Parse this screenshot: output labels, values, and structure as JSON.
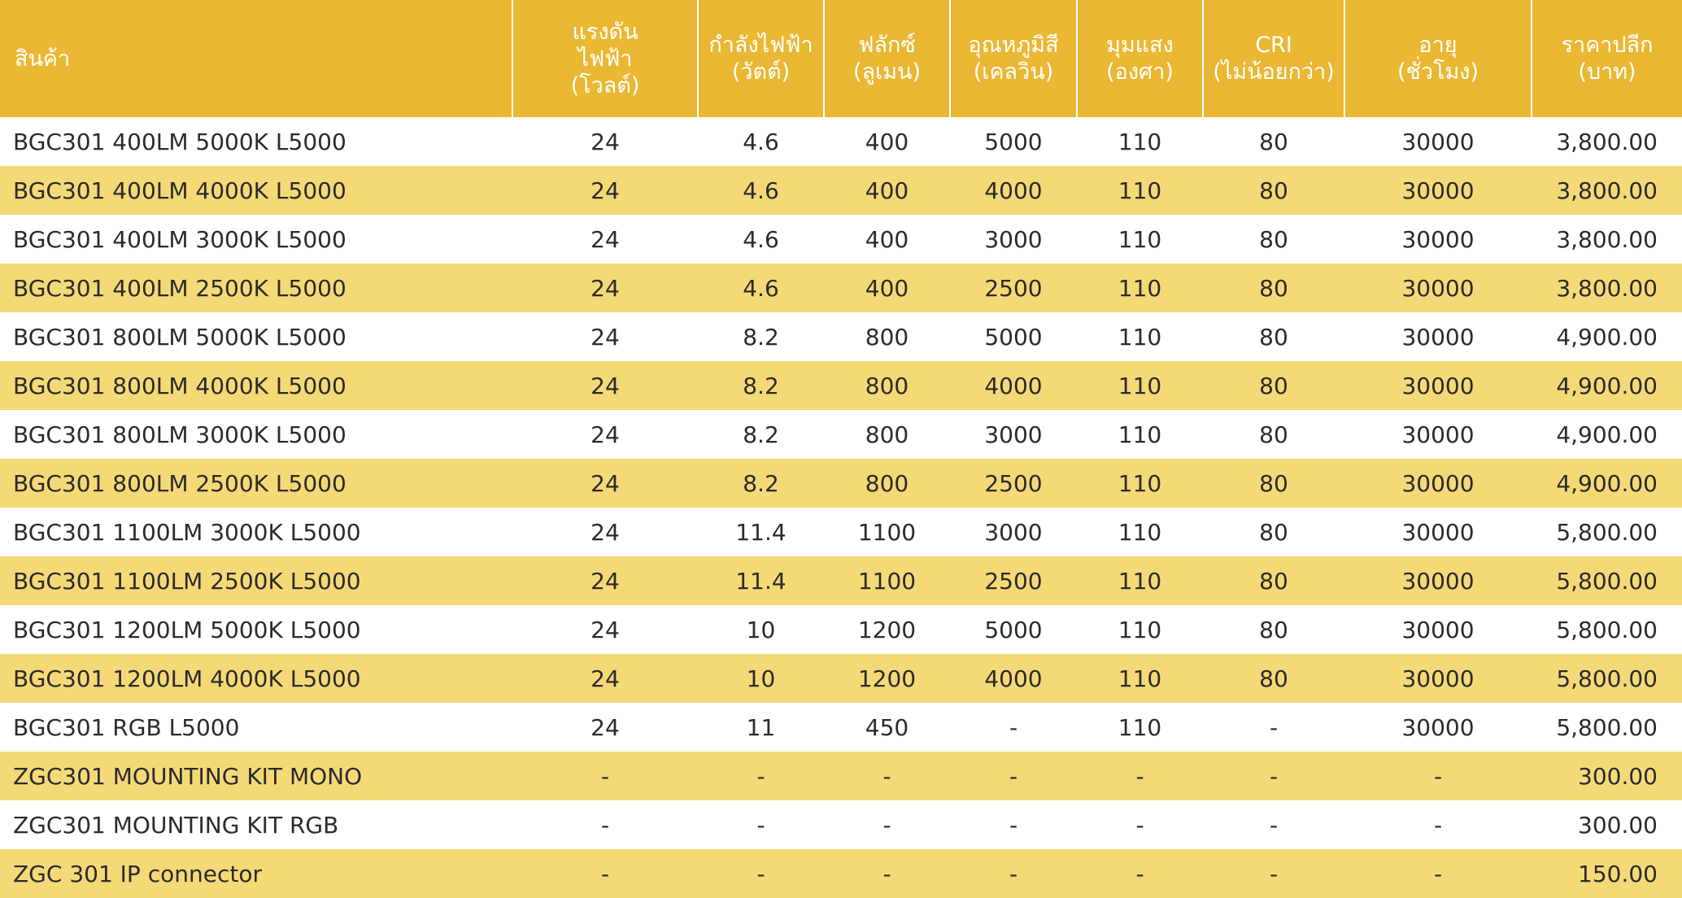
{
  "table": {
    "headers": [
      {
        "lines": [
          "สินค้า"
        ]
      },
      {
        "lines": [
          "แรงดัน",
          "ไฟฟ้า",
          "(โวลต์)"
        ]
      },
      {
        "lines": [
          "กำลังไฟฟ้า",
          "(วัตต์)"
        ]
      },
      {
        "lines": [
          "ฟลักซ์",
          "(ลูเมน)"
        ]
      },
      {
        "lines": [
          "อุณหภูมิสี",
          "(เคลวิน)"
        ]
      },
      {
        "lines": [
          "มุมแสง",
          "(องศา)"
        ]
      },
      {
        "lines": [
          "CRI",
          "(ไม่น้อยกว่า)"
        ]
      },
      {
        "lines": [
          "อายุ",
          "(ชั่วโมง)"
        ]
      },
      {
        "lines": [
          "ราคาปลีก",
          "(บาท)"
        ]
      }
    ],
    "rows": [
      [
        "BGC301 400LM 5000K L5000",
        "24",
        "4.6",
        "400",
        "5000",
        "110",
        "80",
        "30000",
        "3,800.00"
      ],
      [
        "BGC301 400LM 4000K L5000",
        "24",
        "4.6",
        "400",
        "4000",
        "110",
        "80",
        "30000",
        "3,800.00"
      ],
      [
        "BGC301 400LM 3000K L5000",
        "24",
        "4.6",
        "400",
        "3000",
        "110",
        "80",
        "30000",
        "3,800.00"
      ],
      [
        "BGC301 400LM 2500K L5000",
        "24",
        "4.6",
        "400",
        "2500",
        "110",
        "80",
        "30000",
        "3,800.00"
      ],
      [
        "BGC301 800LM 5000K L5000",
        "24",
        "8.2",
        "800",
        "5000",
        "110",
        "80",
        "30000",
        "4,900.00"
      ],
      [
        "BGC301 800LM 4000K L5000",
        "24",
        "8.2",
        "800",
        "4000",
        "110",
        "80",
        "30000",
        "4,900.00"
      ],
      [
        "BGC301 800LM 3000K L5000",
        "24",
        "8.2",
        "800",
        "3000",
        "110",
        "80",
        "30000",
        "4,900.00"
      ],
      [
        "BGC301 800LM 2500K L5000",
        "24",
        "8.2",
        "800",
        "2500",
        "110",
        "80",
        "30000",
        "4,900.00"
      ],
      [
        "BGC301 1100LM 3000K L5000",
        "24",
        "11.4",
        "1100",
        "3000",
        "110",
        "80",
        "30000",
        "5,800.00"
      ],
      [
        "BGC301 1100LM 2500K L5000",
        "24",
        "11.4",
        "1100",
        "2500",
        "110",
        "80",
        "30000",
        "5,800.00"
      ],
      [
        "BGC301 1200LM 5000K L5000",
        "24",
        "10",
        "1200",
        "5000",
        "110",
        "80",
        "30000",
        "5,800.00"
      ],
      [
        "BGC301 1200LM 4000K L5000",
        "24",
        "10",
        "1200",
        "4000",
        "110",
        "80",
        "30000",
        "5,800.00"
      ],
      [
        "BGC301 RGB L5000",
        "24",
        "11",
        "450",
        "-",
        "110",
        "-",
        "30000",
        "5,800.00"
      ],
      [
        "ZGC301 MOUNTING KIT MONO",
        "-",
        "-",
        "-",
        "-",
        "-",
        "-",
        "-",
        "300.00"
      ],
      [
        "ZGC301 MOUNTING KIT RGB",
        "-",
        "-",
        "-",
        "-",
        "-",
        "-",
        "-",
        "300.00"
      ],
      [
        "ZGC 301 IP connector",
        "-",
        "-",
        "-",
        "-",
        "-",
        "-",
        "-",
        "150.00"
      ]
    ]
  },
  "colors": {
    "header_bg": "#ebb834",
    "header_text": "#ffffff",
    "stripe_bg": "#f6d977",
    "row_bg": "#ffffff",
    "body_text": "#2b2b2b"
  }
}
